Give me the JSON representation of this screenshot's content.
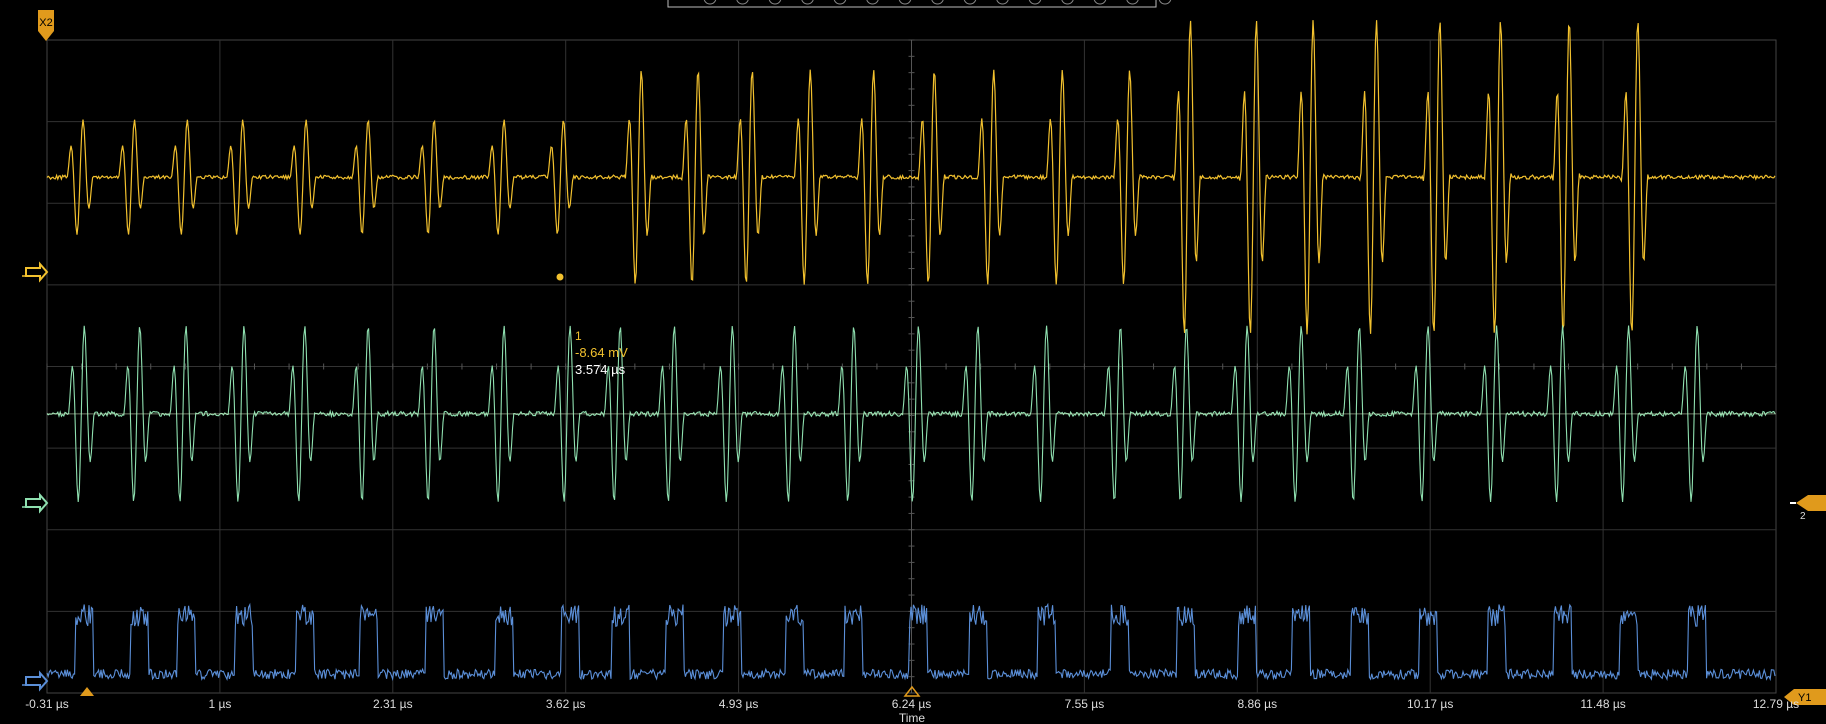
{
  "markers": {
    "x2": "X2",
    "y1": "Y1",
    "cursor_label": "2"
  },
  "cursor_readout": {
    "channel": "1",
    "value": "-8.64 mV",
    "time": "3.574 µs"
  },
  "time_axis": {
    "label": "Time",
    "ticks": [
      "-0.31 µs",
      "1 µs",
      "2.31 µs",
      "3.62 µs",
      "4.93 µs",
      "6.24 µs",
      "7.55 µs",
      "8.86 µs",
      "10.17 µs",
      "11.48 µs",
      "12.79 µs"
    ],
    "range_us": [
      -0.31,
      12.79
    ]
  },
  "channels": [
    {
      "id": "ch1",
      "color": "#f2c12e",
      "burst_times_us": [
        -0.06,
        0.33,
        0.73,
        1.15,
        1.63,
        2.1,
        2.6,
        3.13,
        3.58,
        4.17,
        4.6,
        5.01,
        5.45,
        5.93,
        6.39,
        6.84,
        7.36,
        7.87,
        8.33,
        8.83,
        9.26,
        9.74,
        10.22,
        10.68,
        11.2,
        11.72
      ],
      "burst_amplitude_div": [
        0.75,
        0.75,
        0.75,
        0.75,
        0.75,
        0.75,
        0.75,
        0.75,
        0.75,
        1.4,
        1.4,
        1.4,
        1.4,
        1.4,
        1.4,
        1.4,
        1.4,
        1.4,
        2.05,
        2.05,
        2.05,
        2.05,
        2.05,
        2.05,
        2.05,
        2.05
      ]
    },
    {
      "id": "ch2",
      "color": "#8fe0b0",
      "burst_times_us": [
        -0.05,
        0.37,
        0.72,
        1.16,
        1.62,
        2.1,
        2.6,
        3.13,
        3.63,
        4.01,
        4.42,
        4.86,
        5.33,
        5.78,
        6.27,
        6.72,
        7.24,
        7.8,
        8.3,
        8.76,
        9.17,
        9.61,
        10.13,
        10.65,
        11.15,
        11.65,
        12.17
      ],
      "burst_amplitude_div": 1.15
    },
    {
      "id": "ch3",
      "color": "#5b8fd8",
      "pulse_times_us": [
        -0.05,
        0.37,
        0.72,
        1.16,
        1.62,
        2.1,
        2.6,
        3.13,
        3.63,
        4.01,
        4.42,
        4.86,
        5.33,
        5.78,
        6.27,
        6.72,
        7.24,
        7.8,
        8.3,
        8.76,
        9.17,
        9.61,
        10.13,
        10.65,
        11.15,
        11.65,
        12.17
      ],
      "pulse_amplitude_div": 0.45
    }
  ]
}
